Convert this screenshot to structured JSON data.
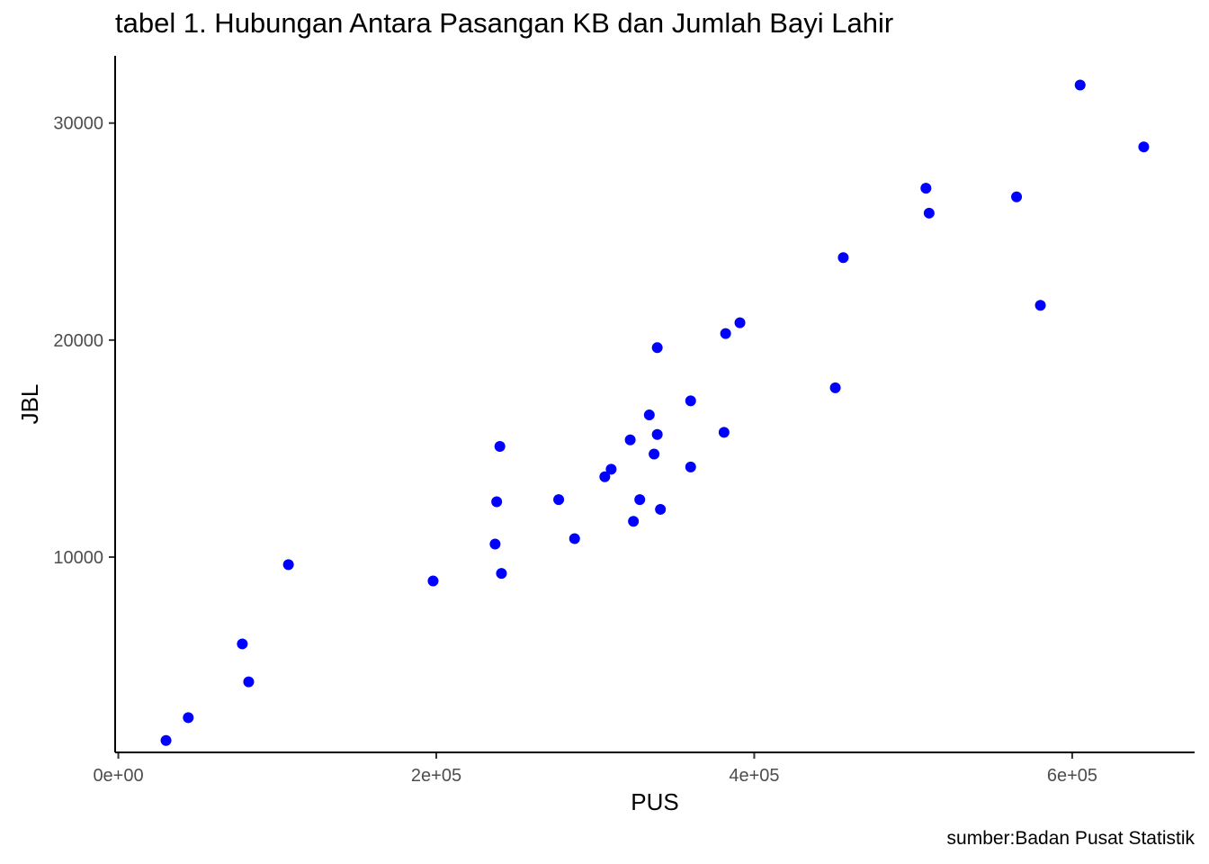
{
  "chart_data": {
    "type": "scatter",
    "title": "tabel 1. Hubungan Antara Pasangan KB dan Jumlah Bayi Lahir",
    "caption": "sumber:Badan Pusat Statistik",
    "xlabel": "PUS",
    "ylabel": "JBL",
    "xlim": [
      -2000,
      677000
    ],
    "ylim": [
      1000,
      33100
    ],
    "x_ticks": [
      0,
      200000,
      400000,
      600000
    ],
    "x_tick_labels": [
      "0e+00",
      "2e+05",
      "4e+05",
      "6e+05"
    ],
    "y_ticks": [
      10000,
      20000,
      30000
    ],
    "y_tick_labels": [
      "10000",
      "20000",
      "30000"
    ],
    "grid": false,
    "point_color": "#0000ff",
    "points": [
      {
        "x": 30000,
        "y": 1550
      },
      {
        "x": 44000,
        "y": 2600
      },
      {
        "x": 78000,
        "y": 6000
      },
      {
        "x": 82000,
        "y": 4250
      },
      {
        "x": 107000,
        "y": 9650
      },
      {
        "x": 198000,
        "y": 8900
      },
      {
        "x": 237000,
        "y": 10600
      },
      {
        "x": 238000,
        "y": 12550
      },
      {
        "x": 240000,
        "y": 15100
      },
      {
        "x": 241000,
        "y": 9250
      },
      {
        "x": 277000,
        "y": 12650
      },
      {
        "x": 287000,
        "y": 10850
      },
      {
        "x": 306000,
        "y": 13700
      },
      {
        "x": 310000,
        "y": 14050
      },
      {
        "x": 322000,
        "y": 15400
      },
      {
        "x": 324000,
        "y": 11650
      },
      {
        "x": 328000,
        "y": 12650
      },
      {
        "x": 334000,
        "y": 16550
      },
      {
        "x": 337000,
        "y": 14750
      },
      {
        "x": 339000,
        "y": 15650
      },
      {
        "x": 339000,
        "y": 19650
      },
      {
        "x": 341000,
        "y": 12200
      },
      {
        "x": 360000,
        "y": 17200
      },
      {
        "x": 360000,
        "y": 14150
      },
      {
        "x": 381000,
        "y": 15750
      },
      {
        "x": 382000,
        "y": 20300
      },
      {
        "x": 391000,
        "y": 20800
      },
      {
        "x": 451000,
        "y": 17800
      },
      {
        "x": 456000,
        "y": 23800
      },
      {
        "x": 508000,
        "y": 27000
      },
      {
        "x": 510000,
        "y": 25850
      },
      {
        "x": 565000,
        "y": 26600
      },
      {
        "x": 580000,
        "y": 21600
      },
      {
        "x": 605000,
        "y": 31750
      },
      {
        "x": 645000,
        "y": 28900
      }
    ]
  }
}
